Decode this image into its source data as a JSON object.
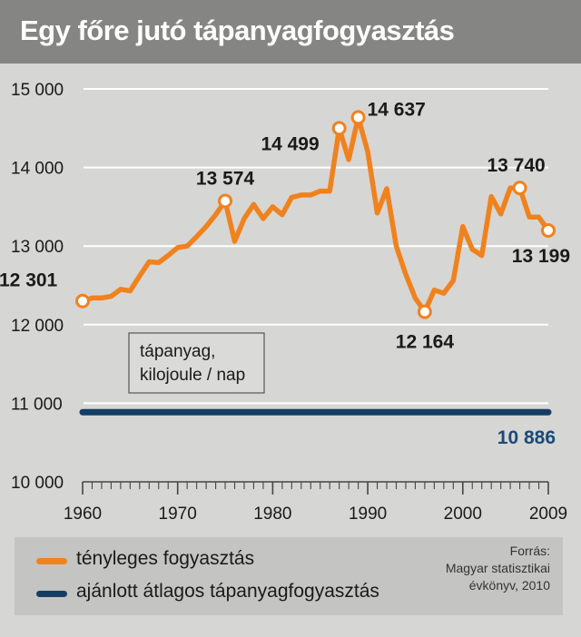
{
  "title": "Egy főre jutó tápanyagfogyasztás",
  "colors": {
    "actual": "#f0821e",
    "recommended": "#163e63",
    "recommended_label": "#1a4a78",
    "grid": "#ffffff",
    "text": "#1a1a1a"
  },
  "chart_data": {
    "type": "line",
    "unit_box": [
      "tápanyag,",
      "kilojoule / nap"
    ],
    "xlim": [
      1960,
      2009
    ],
    "ylim": [
      10000,
      15000
    ],
    "x_tick_labels": [
      "1960",
      "1970",
      "1980",
      "1990",
      "2000",
      "2009"
    ],
    "y_tick_labels": [
      "15 000",
      "14 000",
      "13 000",
      "12 000",
      "11 000",
      "10 000"
    ],
    "grid": true,
    "series": [
      {
        "name": "tényleges fogyasztás",
        "x": [
          1960,
          1961,
          1962,
          1963,
          1964,
          1965,
          1966,
          1967,
          1968,
          1969,
          1970,
          1971,
          1972,
          1973,
          1974,
          1975,
          1976,
          1977,
          1978,
          1979,
          1980,
          1981,
          1982,
          1983,
          1984,
          1985,
          1986,
          1987,
          1988,
          1989,
          1990,
          1991,
          1992,
          1993,
          1994,
          1995,
          1996,
          1997,
          1998,
          1999,
          2000,
          2001,
          2002,
          2003,
          2004,
          2005,
          2006,
          2007,
          2008,
          2009
        ],
        "values": [
          12301,
          12340,
          12340,
          12360,
          12450,
          12430,
          12620,
          12800,
          12790,
          12880,
          12980,
          13000,
          13120,
          13250,
          13400,
          13574,
          13060,
          13350,
          13530,
          13350,
          13500,
          13400,
          13620,
          13650,
          13650,
          13700,
          13700,
          14499,
          14100,
          14637,
          14200,
          13420,
          13730,
          13000,
          12640,
          12340,
          12164,
          12440,
          12400,
          12560,
          13250,
          12960,
          12880,
          13630,
          13410,
          13740,
          13740,
          13370,
          13370,
          13199
        ]
      },
      {
        "name": "ajánlott átlagos tápanyagfogyasztás",
        "x": [
          1960,
          2009
        ],
        "values": [
          10886,
          10886
        ]
      }
    ],
    "annotations": [
      {
        "x": 1960,
        "y": 12301,
        "label": "12 301"
      },
      {
        "x": 1975,
        "y": 13574,
        "label": "13 574"
      },
      {
        "x": 1987,
        "y": 14499,
        "label": "14 499"
      },
      {
        "x": 1989,
        "y": 14637,
        "label": "14 637"
      },
      {
        "x": 1996,
        "y": 12164,
        "label": "12 164"
      },
      {
        "x": 2006,
        "y": 13740,
        "label": "13 740"
      },
      {
        "x": 2009,
        "y": 13199,
        "label": "13 199"
      }
    ],
    "reference_label": "10 886"
  },
  "legend": {
    "actual_label": "tényleges fogyasztás",
    "recommended_label": "ajánlott átlagos tápanyagfogyasztás"
  },
  "source": {
    "line1": "Forrás:",
    "line2": "Magyar statisztikai",
    "line3": "évkönyv, 2010"
  }
}
